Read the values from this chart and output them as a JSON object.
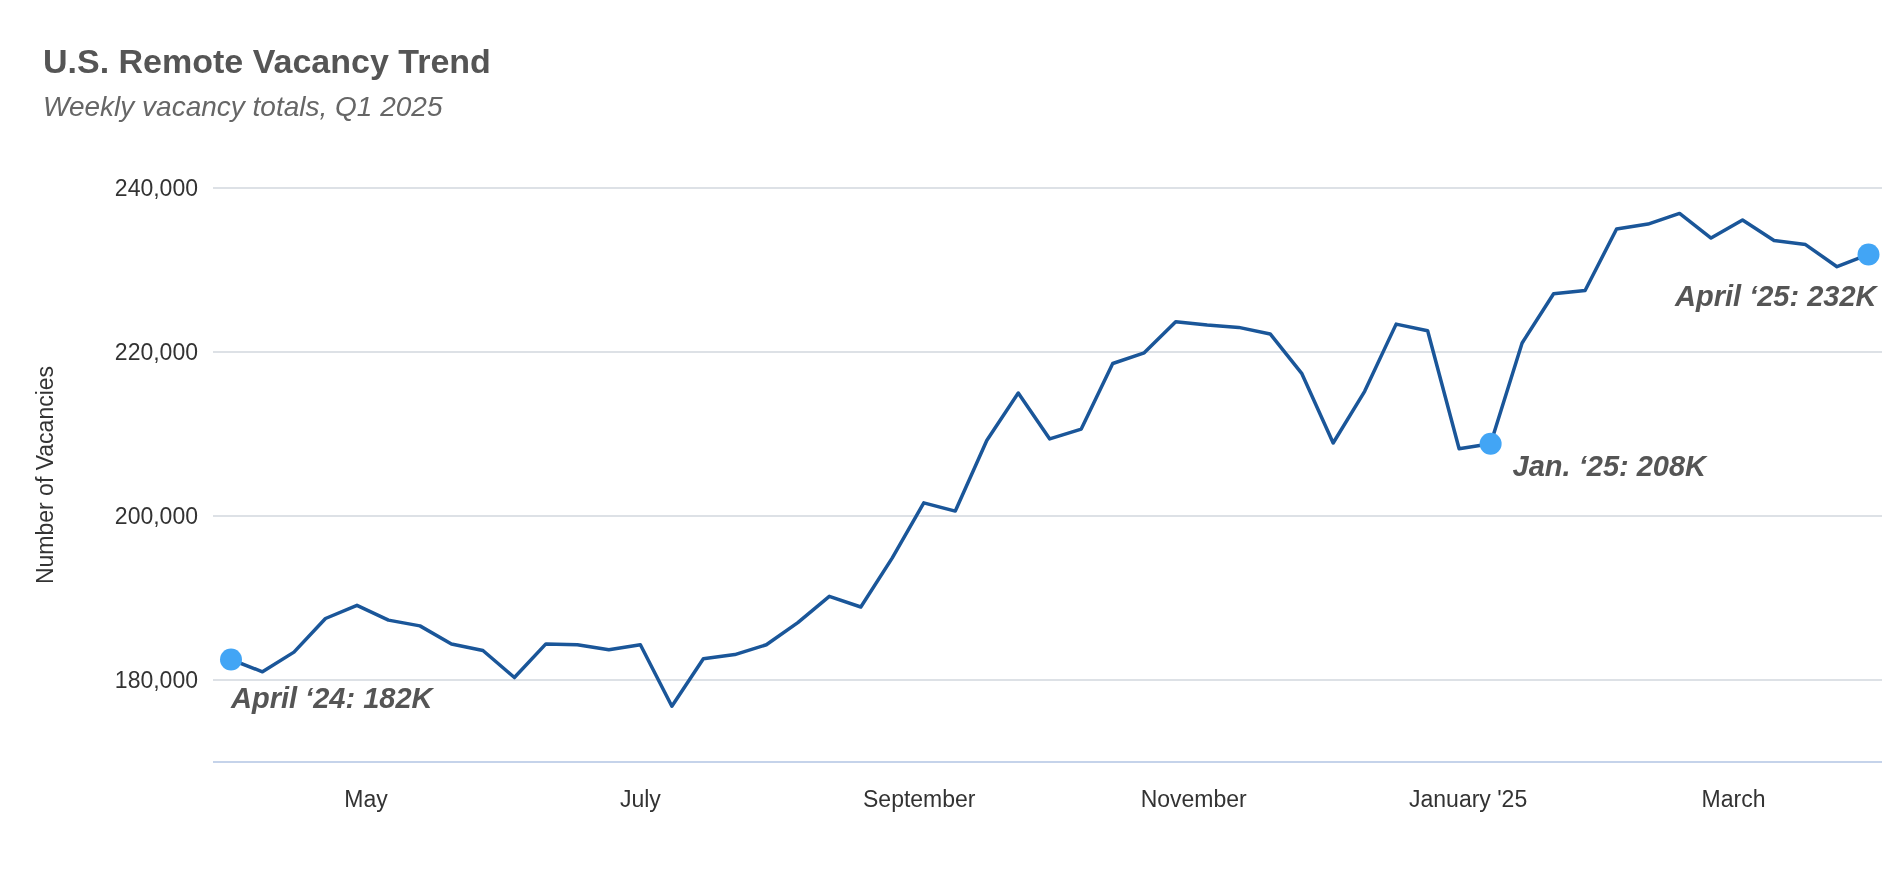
{
  "chart_data": {
    "type": "line",
    "title": "U.S. Remote Vacancy Trend",
    "subtitle": "Weekly vacancy totals, Q1 2025",
    "ylabel": "Number of Vacancies",
    "x": [
      "2024-04-01",
      "2024-04-08",
      "2024-04-15",
      "2024-04-22",
      "2024-04-29",
      "2024-05-06",
      "2024-05-13",
      "2024-05-20",
      "2024-05-27",
      "2024-06-03",
      "2024-06-10",
      "2024-06-17",
      "2024-06-24",
      "2024-07-01",
      "2024-07-08",
      "2024-07-15",
      "2024-07-22",
      "2024-07-29",
      "2024-08-05",
      "2024-08-12",
      "2024-08-19",
      "2024-08-26",
      "2024-09-02",
      "2024-09-09",
      "2024-09-16",
      "2024-09-23",
      "2024-09-30",
      "2024-10-07",
      "2024-10-14",
      "2024-10-21",
      "2024-10-28",
      "2024-11-04",
      "2024-11-11",
      "2024-11-18",
      "2024-11-25",
      "2024-12-02",
      "2024-12-09",
      "2024-12-16",
      "2024-12-23",
      "2024-12-30",
      "2025-01-06",
      "2025-01-13",
      "2025-01-20",
      "2025-01-27",
      "2025-02-03",
      "2025-02-10",
      "2025-02-17",
      "2025-02-24",
      "2025-03-03",
      "2025-03-10",
      "2025-03-17",
      "2025-03-24",
      "2025-03-31"
    ],
    "series": [
      {
        "color": "#1a5699",
        "marker": "none",
        "values": [
          182500,
          181000,
          183400,
          187500,
          189100,
          187300,
          186600,
          184400,
          183600,
          180300,
          184400,
          184300,
          183700,
          184300,
          176800,
          182600,
          183100,
          184300,
          187000,
          190200,
          188900,
          194900,
          201600,
          200600,
          209200,
          215000,
          209400,
          210600,
          218600,
          219900,
          223700,
          223300,
          223000,
          222200,
          217400,
          208900,
          215200,
          223400,
          222600,
          208200,
          208800,
          221100,
          227100,
          227500,
          235000,
          235600,
          236900,
          233900,
          236100,
          233600,
          233100,
          230400,
          231900
        ]
      },
      {
        "type": "scatter",
        "color": "#42a5f5",
        "marker": "circle",
        "x": [
          "2024-04-01",
          "2025-01-06",
          "2025-03-31"
        ],
        "values": [
          182500,
          208800,
          231900
        ]
      }
    ],
    "annotations": [
      {
        "text": "April ‘24: 182K",
        "x": "2024-04-01",
        "y": 182500
      },
      {
        "text": "Jan. ‘25: 208K",
        "x": "2025-01-06",
        "y": 208800
      },
      {
        "text": "April ‘25: 232K",
        "x": "2025-03-31",
        "y": 231900
      }
    ],
    "xlim": [
      "2024-03-28",
      "2025-04-03"
    ],
    "xticks": [
      {
        "value": "2024-05-01",
        "label": "May"
      },
      {
        "value": "2024-07-01",
        "label": "July"
      },
      {
        "value": "2024-09-01",
        "label": "September"
      },
      {
        "value": "2024-11-01",
        "label": "November"
      },
      {
        "value": "2025-01-01",
        "label": "January '25"
      },
      {
        "value": "2025-03-01",
        "label": "March"
      }
    ],
    "ylim": [
      170000,
      240000
    ],
    "yticks": [
      {
        "value": 180000,
        "label": "180,000"
      },
      {
        "value": 200000,
        "label": "200,000"
      },
      {
        "value": 220000,
        "label": "220,000"
      },
      {
        "value": 240000,
        "label": "240,000"
      }
    ],
    "grid": "y"
  }
}
